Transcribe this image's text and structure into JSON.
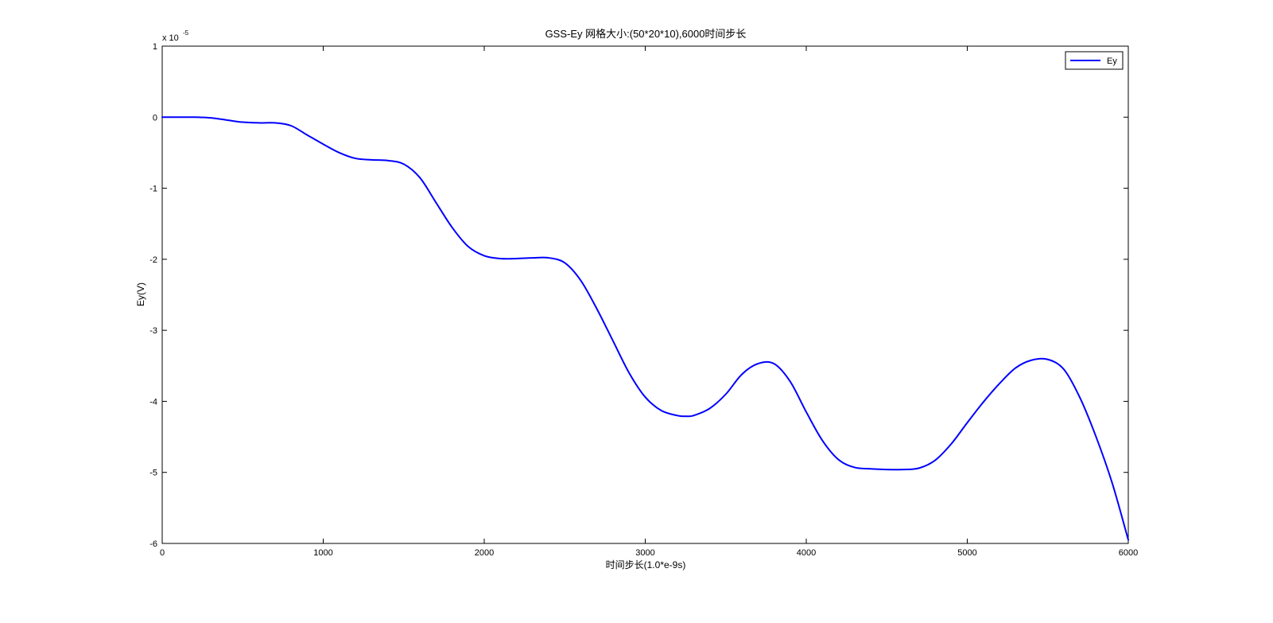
{
  "chart_data": {
    "type": "line",
    "title": "GSS-Ey 网格大小:(50*20*10),6000时间步长",
    "xlabel": "时间步长(1.0*e-9s)",
    "ylabel": "Ey(V)",
    "y_exponent_label": "x 10",
    "y_exponent_power": "-5",
    "xlim": [
      0,
      6000
    ],
    "ylim": [
      -6,
      1
    ],
    "xticks": [
      0,
      1000,
      2000,
      3000,
      4000,
      5000,
      6000
    ],
    "xtick_labels": [
      "0",
      "1000",
      "2000",
      "3000",
      "4000",
      "5000",
      "6000"
    ],
    "yticks": [
      1,
      0,
      -1,
      -2,
      -3,
      -4,
      -5,
      -6
    ],
    "ytick_labels": [
      "1",
      "0",
      "-1",
      "-2",
      "-3",
      "-4",
      "-5",
      "-6"
    ],
    "grid": false,
    "legend_position": "top-right",
    "series": [
      {
        "name": "Ey",
        "color": "#0000ff",
        "x": [
          0,
          100,
          200,
          300,
          400,
          500,
          600,
          700,
          800,
          900,
          1000,
          1100,
          1200,
          1300,
          1400,
          1500,
          1600,
          1700,
          1800,
          1900,
          2000,
          2100,
          2200,
          2300,
          2400,
          2500,
          2600,
          2700,
          2800,
          2900,
          3000,
          3100,
          3200,
          3250,
          3300,
          3400,
          3500,
          3600,
          3700,
          3800,
          3900,
          4000,
          4100,
          4200,
          4300,
          4400,
          4500,
          4600,
          4700,
          4800,
          4900,
          5000,
          5100,
          5200,
          5300,
          5400,
          5500,
          5600,
          5700,
          5800,
          5900,
          6000
        ],
        "y": [
          0,
          0,
          0,
          -0.01,
          -0.04,
          -0.07,
          -0.08,
          -0.08,
          -0.12,
          -0.25,
          -0.38,
          -0.5,
          -0.58,
          -0.6,
          -0.61,
          -0.66,
          -0.85,
          -1.2,
          -1.55,
          -1.82,
          -1.95,
          -1.99,
          -1.99,
          -1.98,
          -1.98,
          -2.05,
          -2.3,
          -2.7,
          -3.15,
          -3.6,
          -3.94,
          -4.13,
          -4.2,
          -4.21,
          -4.2,
          -4.1,
          -3.9,
          -3.62,
          -3.47,
          -3.47,
          -3.72,
          -4.15,
          -4.55,
          -4.82,
          -4.93,
          -4.95,
          -4.96,
          -4.96,
          -4.94,
          -4.83,
          -4.6,
          -4.3,
          -4.01,
          -3.75,
          -3.53,
          -3.42,
          -3.41,
          -3.55,
          -3.95,
          -4.5,
          -5.15,
          -5.95
        ]
      }
    ]
  }
}
